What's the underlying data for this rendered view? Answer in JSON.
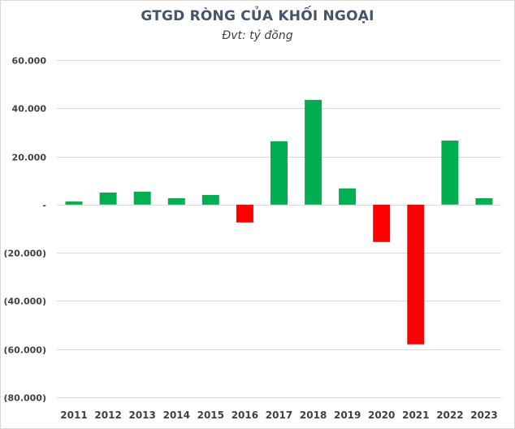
{
  "chart_data": {
    "type": "bar",
    "title": "GTGD RÒNG CỦA KHỐI NGOẠI",
    "subtitle": "Đvt: tỷ đồng",
    "xlabel": "",
    "ylabel": "",
    "categories": [
      "2011",
      "2012",
      "2013",
      "2014",
      "2015",
      "2016",
      "2017",
      "2018",
      "2019",
      "2020",
      "2021",
      "2022",
      "2023"
    ],
    "values": [
      1300,
      5000,
      5400,
      2700,
      4000,
      -7400,
      26300,
      43500,
      6700,
      -15500,
      -58000,
      26600,
      2700
    ],
    "ylim": [
      -80000,
      60000
    ],
    "yticks": [
      60000,
      40000,
      20000,
      0,
      -20000,
      -40000,
      -60000,
      -80000
    ],
    "ytick_labels": [
      "60.000",
      "40.000",
      "20.000",
      "-",
      "(20.000)",
      "(40.000)",
      "(60.000)",
      "(80.000)"
    ],
    "grid": true,
    "legend": "none",
    "colors": {
      "positive": "#00b050",
      "negative": "#ff0000",
      "grid": "#d9d9d9",
      "text": "#404040",
      "title": "#44546a"
    }
  }
}
